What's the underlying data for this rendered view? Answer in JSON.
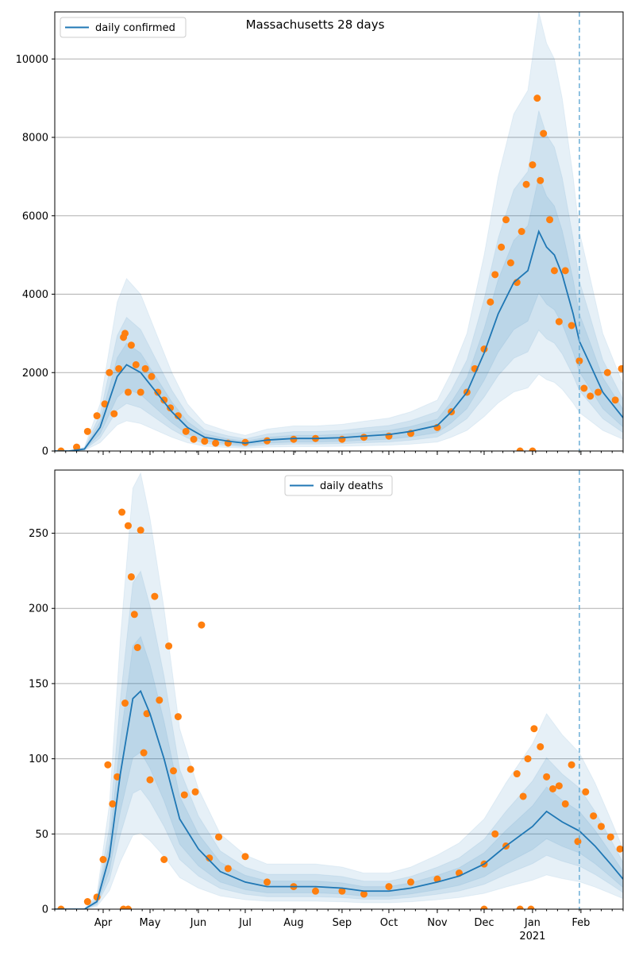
{
  "title": "Massachusetts 28 days",
  "x_ticks": [
    {
      "label": "Apr",
      "date": "2020-04-01"
    },
    {
      "label": "May",
      "date": "2020-05-01"
    },
    {
      "label": "Jun",
      "date": "2020-06-01"
    },
    {
      "label": "Jul",
      "date": "2020-07-01"
    },
    {
      "label": "Aug",
      "date": "2020-08-01"
    },
    {
      "label": "Sep",
      "date": "2020-09-01"
    },
    {
      "label": "Oct",
      "date": "2020-10-01"
    },
    {
      "label": "Nov",
      "date": "2020-11-01"
    },
    {
      "label": "Dec",
      "date": "2020-12-01"
    },
    {
      "label": "Jan",
      "date": "2021-01-01"
    },
    {
      "label": "Feb",
      "date": "2021-02-01"
    }
  ],
  "year_label": "2021",
  "colors": {
    "line": "#1f77b4",
    "points": "#ff7f0e",
    "band": "#1f77b4",
    "grid": "#b0b0b0",
    "vline": "#6baed6"
  },
  "chart_data": [
    {
      "type": "line",
      "title": "Massachusetts 28 days",
      "legend": "daily confirmed",
      "legend_position": "top-left",
      "grid": "y",
      "xlim": [
        "2020-03-01",
        "2021-02-28"
      ],
      "ylim": [
        0,
        11200
      ],
      "yticks": [
        0,
        2000,
        4000,
        6000,
        8000,
        10000
      ],
      "forecast_start": "2021-01-31",
      "series": [
        {
          "name": "daily confirmed",
          "x": [
            "2020-03-01",
            "2020-03-10",
            "2020-03-20",
            "2020-03-30",
            "2020-04-10",
            "2020-04-16",
            "2020-04-25",
            "2020-05-05",
            "2020-05-15",
            "2020-05-25",
            "2020-06-05",
            "2020-06-20",
            "2020-07-01",
            "2020-07-15",
            "2020-08-01",
            "2020-08-15",
            "2020-09-01",
            "2020-09-15",
            "2020-10-01",
            "2020-10-15",
            "2020-11-01",
            "2020-11-10",
            "2020-11-20",
            "2020-12-01",
            "2020-12-10",
            "2020-12-20",
            "2020-12-29",
            "2021-01-05",
            "2021-01-10",
            "2021-01-15",
            "2021-01-20",
            "2021-01-27",
            "2021-01-31",
            "2021-02-07",
            "2021-02-15",
            "2021-02-28"
          ],
          "values": [
            0,
            0,
            50,
            600,
            1900,
            2200,
            2000,
            1500,
            1000,
            600,
            350,
            250,
            200,
            280,
            320,
            320,
            340,
            380,
            420,
            500,
            650,
            1000,
            1500,
            2500,
            3500,
            4300,
            4600,
            5600,
            5200,
            5000,
            4500,
            3500,
            2800,
            2200,
            1500,
            850
          ]
        }
      ],
      "points": {
        "x": [
          "2020-03-05",
          "2020-03-15",
          "2020-03-22",
          "2020-03-28",
          "2020-04-02",
          "2020-04-05",
          "2020-04-08",
          "2020-04-11",
          "2020-04-14",
          "2020-04-15",
          "2020-04-17",
          "2020-04-19",
          "2020-04-22",
          "2020-04-25",
          "2020-04-28",
          "2020-05-02",
          "2020-05-06",
          "2020-05-10",
          "2020-05-14",
          "2020-05-19",
          "2020-05-24",
          "2020-05-29",
          "2020-06-05",
          "2020-06-12",
          "2020-06-20",
          "2020-07-01",
          "2020-07-15",
          "2020-08-01",
          "2020-08-15",
          "2020-09-01",
          "2020-09-15",
          "2020-10-01",
          "2020-10-15",
          "2020-11-01",
          "2020-11-10",
          "2020-11-20",
          "2020-11-25",
          "2020-12-01",
          "2020-12-05",
          "2020-12-08",
          "2020-12-12",
          "2020-12-15",
          "2020-12-18",
          "2020-12-22",
          "2020-12-25",
          "2020-12-28",
          "2021-01-01",
          "2021-01-04",
          "2021-01-06",
          "2021-01-08",
          "2021-01-12",
          "2021-01-15",
          "2021-01-18",
          "2021-01-22",
          "2021-01-26",
          "2021-01-31",
          "2021-02-03",
          "2021-02-07",
          "2021-02-12",
          "2021-02-18",
          "2021-02-23",
          "2021-02-27",
          "2020-12-24",
          "2021-01-01"
        ],
        "values": [
          0,
          100,
          500,
          900,
          1200,
          2000,
          950,
          2100,
          2900,
          3000,
          1500,
          2700,
          2200,
          1500,
          2100,
          1900,
          1500,
          1300,
          1100,
          900,
          500,
          300,
          250,
          200,
          200,
          220,
          260,
          300,
          320,
          300,
          350,
          380,
          450,
          600,
          1000,
          1500,
          2100,
          2600,
          3800,
          4500,
          5200,
          5900,
          4800,
          4300,
          5600,
          6800,
          7300,
          9000,
          6900,
          8100,
          5900,
          4600,
          3300,
          4600,
          3200,
          2300,
          1600,
          1400,
          1500,
          2000,
          1300,
          2100,
          0,
          0
        ]
      }
    },
    {
      "type": "line",
      "legend": "daily deaths",
      "legend_position": "top-center",
      "grid": "y",
      "xlim": [
        "2020-03-01",
        "2021-02-28"
      ],
      "ylim": [
        0,
        292
      ],
      "yticks": [
        0,
        50,
        100,
        150,
        200,
        250
      ],
      "forecast_start": "2021-01-31",
      "series": [
        {
          "name": "daily deaths",
          "x": [
            "2020-03-01",
            "2020-03-20",
            "2020-03-28",
            "2020-04-05",
            "2020-04-12",
            "2020-04-20",
            "2020-04-25",
            "2020-05-01",
            "2020-05-10",
            "2020-05-20",
            "2020-06-01",
            "2020-06-15",
            "2020-07-01",
            "2020-07-15",
            "2020-08-01",
            "2020-08-15",
            "2020-09-01",
            "2020-09-15",
            "2020-10-01",
            "2020-10-15",
            "2020-11-01",
            "2020-11-15",
            "2020-12-01",
            "2020-12-15",
            "2021-01-01",
            "2021-01-10",
            "2021-01-20",
            "2021-01-31",
            "2021-02-10",
            "2021-02-20",
            "2021-02-28"
          ],
          "values": [
            0,
            0,
            5,
            35,
            90,
            140,
            145,
            130,
            100,
            60,
            40,
            25,
            18,
            15,
            15,
            15,
            14,
            12,
            12,
            14,
            18,
            22,
            30,
            42,
            55,
            65,
            58,
            52,
            42,
            30,
            20
          ]
        }
      ],
      "points": {
        "x": [
          "2020-03-05",
          "2020-03-22",
          "2020-03-28",
          "2020-04-01",
          "2020-04-04",
          "2020-04-07",
          "2020-04-10",
          "2020-04-13",
          "2020-04-15",
          "2020-04-17",
          "2020-04-19",
          "2020-04-21",
          "2020-04-23",
          "2020-04-25",
          "2020-04-27",
          "2020-04-29",
          "2020-05-01",
          "2020-05-04",
          "2020-05-07",
          "2020-05-10",
          "2020-05-13",
          "2020-05-16",
          "2020-05-19",
          "2020-05-23",
          "2020-05-27",
          "2020-05-30",
          "2020-06-03",
          "2020-06-08",
          "2020-06-14",
          "2020-06-20",
          "2020-07-01",
          "2020-07-15",
          "2020-08-01",
          "2020-08-15",
          "2020-09-01",
          "2020-09-15",
          "2020-10-01",
          "2020-10-15",
          "2020-11-01",
          "2020-11-15",
          "2020-12-01",
          "2020-12-08",
          "2020-12-15",
          "2020-12-22",
          "2020-12-26",
          "2020-12-29",
          "2021-01-02",
          "2021-01-06",
          "2021-01-10",
          "2021-01-14",
          "2021-01-18",
          "2021-01-22",
          "2021-01-26",
          "2021-01-30",
          "2021-02-04",
          "2021-02-09",
          "2021-02-14",
          "2021-02-20",
          "2021-02-26",
          "2020-04-14",
          "2020-04-17",
          "2020-12-01",
          "2020-12-24",
          "2020-12-31"
        ],
        "values": [
          0,
          5,
          8,
          33,
          96,
          70,
          88,
          264,
          137,
          255,
          221,
          196,
          174,
          252,
          104,
          130,
          86,
          208,
          139,
          33,
          175,
          92,
          128,
          76,
          93,
          78,
          189,
          34,
          48,
          27,
          35,
          18,
          15,
          12,
          12,
          10,
          15,
          18,
          20,
          24,
          30,
          50,
          42,
          90,
          75,
          100,
          120,
          108,
          88,
          80,
          82,
          70,
          96,
          45,
          78,
          62,
          55,
          48,
          40,
          0,
          0,
          0,
          0,
          0
        ]
      }
    }
  ]
}
